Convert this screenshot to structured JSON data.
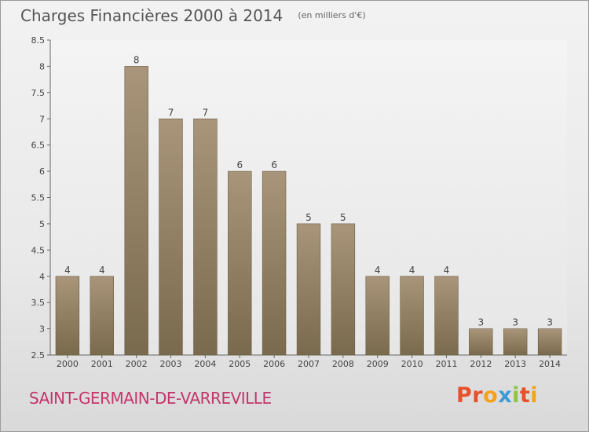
{
  "title": "Charges Financières 2000 à 2014",
  "unit": "(en milliers d'€)",
  "commune": "SAINT-GERMAIN-DE-VARREVILLE",
  "brand": {
    "letters": [
      "P",
      "r",
      "o",
      "x",
      "i",
      "t",
      "i"
    ],
    "colors": [
      "#e8502a",
      "#e8502a",
      "#f5a11a",
      "#3c9bd6",
      "#8cc63f",
      "#e8502a",
      "#f5a11a"
    ]
  },
  "chart_data": {
    "type": "bar",
    "categories": [
      "2000",
      "2001",
      "2002",
      "2003",
      "2004",
      "2005",
      "2006",
      "2007",
      "2008",
      "2009",
      "2010",
      "2011",
      "2012",
      "2013",
      "2014"
    ],
    "values": [
      4,
      4,
      8,
      7,
      7,
      6,
      6,
      5,
      5,
      4,
      4,
      4,
      3,
      3,
      3
    ],
    "value_labels": [
      "4",
      "4",
      "8",
      "7",
      "7",
      "6",
      "6",
      "5",
      "5",
      "4",
      "4",
      "4",
      "3",
      "3",
      "3"
    ],
    "ylim": [
      2.5,
      8.5
    ],
    "yticks": [
      2.5,
      3,
      3.5,
      4,
      4.5,
      5,
      5.5,
      6,
      6.5,
      7,
      7.5,
      8,
      8.5
    ],
    "ytick_labels": [
      "2.5",
      "3",
      "3.5",
      "4",
      "4.5",
      "5",
      "5.5",
      "6",
      "6.5",
      "7",
      "7.5",
      "8",
      "8.5"
    ],
    "grid": false,
    "bar_color": "#8b7a5c"
  }
}
